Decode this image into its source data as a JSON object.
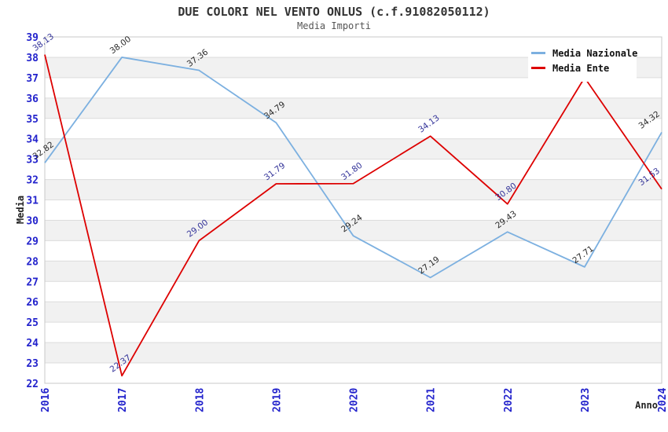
{
  "title": "DUE COLORI NEL VENTO ONLUS (c.f.91082050112)",
  "subtitle": "Media Importi",
  "colors": {
    "axis_tick": "#2323cc",
    "band": "#f1f1f1",
    "grid": "#dcdcdc",
    "plot_border": "#c8c8c8"
  },
  "chart_data": {
    "type": "line",
    "x": [
      2016,
      2017,
      2018,
      2019,
      2020,
      2021,
      2022,
      2023,
      2024
    ],
    "xlabel": "Anno",
    "ylabel": "Media",
    "ylim": [
      22,
      39
    ],
    "ytick_interval": 1,
    "grid": "horizontal-alternating-bands",
    "legend_position": "top-right",
    "series": [
      {
        "name": "Media Nazionale",
        "color": "#7cb0e0",
        "label_color": "#2a2a2a",
        "values": [
          32.82,
          38.0,
          37.36,
          34.79,
          29.24,
          27.19,
          29.43,
          27.71,
          34.32
        ],
        "point_labels": [
          "32.82",
          "38.00",
          "37.36",
          "34.79",
          "29.24",
          "27.19",
          "29.43",
          "27.71",
          "34.32"
        ]
      },
      {
        "name": "Media Ente",
        "color": "#dd0000",
        "label_color": "#333399",
        "values": [
          38.13,
          22.37,
          29.0,
          31.79,
          31.8,
          34.13,
          30.8,
          37.0,
          31.53
        ],
        "point_labels": [
          "38.13",
          "22.37",
          "29.00",
          "31.79",
          "31.80",
          "34.13",
          "30.80",
          "",
          "31.53"
        ]
      }
    ]
  }
}
